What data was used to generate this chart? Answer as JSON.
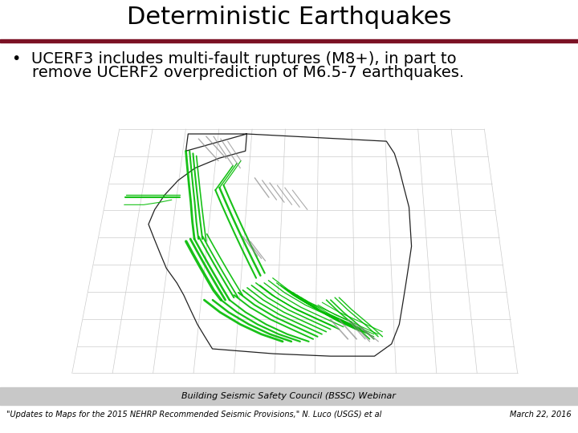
{
  "title": "Deterministic Earthquakes",
  "title_fontsize": 22,
  "title_color": "#000000",
  "title_bar_color": "#7b1225",
  "bullet_text_line1": "•  UCERF3 includes multi-fault ruptures (M8+), in part to",
  "bullet_text_line2": "    remove UCERF2 overprediction of M6.5-7 earthquakes.",
  "bullet_fontsize": 14,
  "footer_bar_color": "#c8c8c8",
  "footer_center": "Building Seismic Safety Council (BSSC) Webinar",
  "footer_left": "\"Updates to Maps for the 2015 NEHRP Recommended Seismic Provisions,\" N. Luco (USGS) et al",
  "footer_right": "March 22, 2016",
  "footer_fontsize": 8,
  "bg_color": "#ffffff",
  "grid_color": "#cccccc",
  "ca_outline_color": "#222222",
  "fault_green": "#00bb00",
  "fault_gray": "#888888"
}
